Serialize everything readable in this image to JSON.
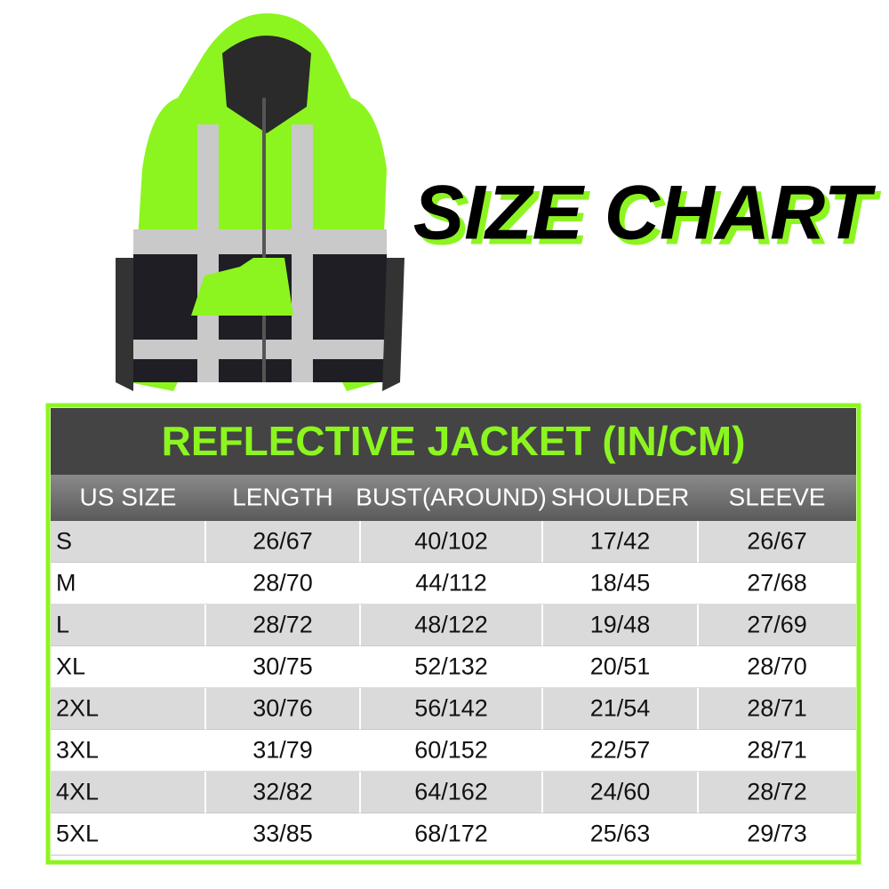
{
  "title": "SIZE CHART",
  "table": {
    "title": "REFLECTIVE JACKET (IN/CM)",
    "columns": [
      "US SIZE",
      "LENGTH",
      "BUST(AROUND)",
      "SHOULDER",
      "SLEEVE"
    ],
    "rows": [
      [
        "S",
        "26/67",
        "40/102",
        "17/42",
        "26/67"
      ],
      [
        "M",
        "28/70",
        "44/112",
        "18/45",
        "27/68"
      ],
      [
        "L",
        "28/72",
        "48/122",
        "19/48",
        "27/69"
      ],
      [
        "XL",
        "30/75",
        "52/132",
        "20/51",
        "28/70"
      ],
      [
        "2XL",
        "30/76",
        "56/142",
        "21/54",
        "28/71"
      ],
      [
        "3XL",
        "31/79",
        "60/152",
        "22/57",
        "28/71"
      ],
      [
        "4XL",
        "32/82",
        "64/162",
        "24/60",
        "28/72"
      ],
      [
        "5XL",
        "33/85",
        "68/172",
        "25/63",
        "29/73"
      ]
    ]
  }
}
